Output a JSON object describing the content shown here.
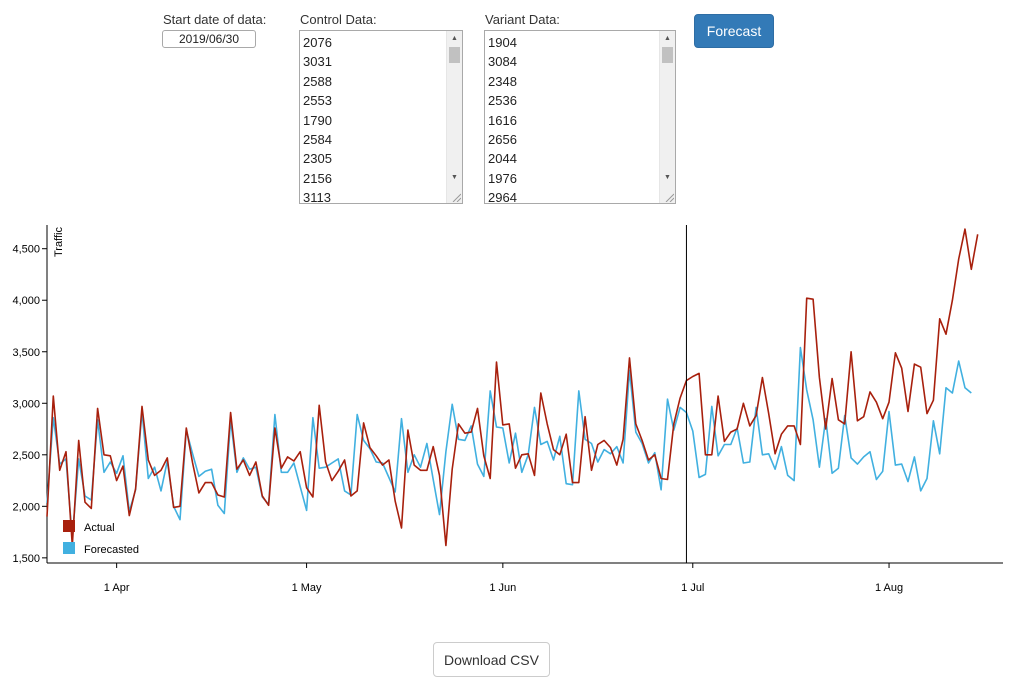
{
  "controls": {
    "start_label": "Start date of data:",
    "start_value": "2019/06/30",
    "control_label": "Control Data:",
    "control_values": [
      "2076",
      "3031",
      "2588",
      "2553",
      "1790",
      "2584",
      "2305",
      "2156",
      "3113"
    ],
    "variant_label": "Variant Data:",
    "variant_values": [
      "1904",
      "3084",
      "2348",
      "2536",
      "1616",
      "2656",
      "2044",
      "1976",
      "2964"
    ],
    "forecast_button": "Forecast",
    "download_button": "Download CSV"
  },
  "icons": {
    "scroll_up": "triangle-up-icon",
    "scroll_down": "triangle-down-icon",
    "resize_grip": "resize-grip-icon"
  },
  "colors": {
    "actual": "#a8200d",
    "forecasted": "#41b0e0",
    "button_primary": "#337ab7"
  },
  "chart_data": {
    "type": "line",
    "x_start": "2019-03-21",
    "x_end": "2019-08-19",
    "ylabel": "Traffic",
    "ylim": [
      1450,
      4730
    ],
    "yticks": [
      1500,
      2000,
      2500,
      3000,
      3500,
      4000,
      4500
    ],
    "ytick_labels": [
      "1,500",
      "2,000",
      "2,500",
      "3,000",
      "3,500",
      "4,000",
      "4,500"
    ],
    "xticks": [
      "2019-04-01",
      "2019-05-01",
      "2019-06-01",
      "2019-07-01",
      "2019-08-01"
    ],
    "xtick_labels": [
      "1 Apr",
      "1 May",
      "1 Jun",
      "1 Jul",
      "1 Aug"
    ],
    "marker_line": "2019-06-30",
    "legend_position": "bottom-left",
    "series": [
      {
        "name": "Actual",
        "color": "#a8200d",
        "values": [
          1900,
          3070,
          2350,
          2530,
          1620,
          2640,
          2040,
          1980,
          2950,
          2500,
          2490,
          2250,
          2390,
          1910,
          2170,
          2970,
          2450,
          2300,
          2350,
          2470,
          1990,
          2000,
          2760,
          2420,
          2130,
          2230,
          2230,
          2110,
          2090,
          2910,
          2360,
          2450,
          2300,
          2430,
          2100,
          2010,
          2760,
          2370,
          2480,
          2440,
          2530,
          2180,
          2090,
          2980,
          2430,
          2250,
          2340,
          2450,
          2100,
          2150,
          2810,
          2570,
          2490,
          2400,
          2450,
          2050,
          1790,
          2740,
          2400,
          2350,
          2350,
          2580,
          2300,
          1620,
          2360,
          2800,
          2710,
          2720,
          2950,
          2490,
          2270,
          3400,
          2790,
          2800,
          2370,
          2500,
          2510,
          2300,
          3100,
          2800,
          2550,
          2500,
          2700,
          2230,
          2230,
          2870,
          2350,
          2600,
          2640,
          2570,
          2400,
          2650,
          3440,
          2800,
          2640,
          2450,
          2500,
          2270,
          2260,
          2800,
          3050,
          3220,
          3260,
          3290,
          2500,
          2500,
          3070,
          2630,
          2720,
          2750,
          3000,
          2780,
          2880,
          3250,
          2900,
          2510,
          2700,
          2780,
          2780,
          2600,
          4020,
          4010,
          3250,
          2750,
          3240,
          2840,
          2800,
          3500,
          2830,
          2870,
          3110,
          3010,
          2850,
          3010,
          3490,
          3340,
          2920,
          3380,
          3350,
          2900,
          3030,
          3820,
          3670,
          4000,
          4400,
          4690,
          4300,
          4640
        ]
      },
      {
        "name": "Forecasted",
        "color": "#41b0e0",
        "values": [
          2030,
          2860,
          2410,
          2460,
          1690,
          2460,
          2100,
          2060,
          2840,
          2330,
          2430,
          2320,
          2490,
          1950,
          2160,
          2920,
          2270,
          2380,
          2150,
          2440,
          2000,
          1870,
          2740,
          2510,
          2290,
          2340,
          2360,
          2010,
          1930,
          2840,
          2330,
          2470,
          2360,
          2380,
          2090,
          2020,
          2890,
          2330,
          2330,
          2420,
          2190,
          1960,
          2860,
          2370,
          2380,
          2420,
          2460,
          2150,
          2110,
          2890,
          2640,
          2560,
          2430,
          2420,
          2280,
          2140,
          2850,
          2330,
          2500,
          2380,
          2610,
          2260,
          1920,
          2530,
          2990,
          2650,
          2640,
          2780,
          2410,
          2290,
          3120,
          2770,
          2760,
          2420,
          2710,
          2330,
          2500,
          2960,
          2600,
          2630,
          2450,
          2680,
          2220,
          2210,
          3120,
          2650,
          2610,
          2430,
          2550,
          2510,
          2580,
          2420,
          3320,
          2720,
          2610,
          2420,
          2520,
          2160,
          3040,
          2740,
          2960,
          2910,
          2730,
          2280,
          2310,
          2970,
          2490,
          2600,
          2600,
          2760,
          2420,
          2430,
          2960,
          2500,
          2510,
          2360,
          2580,
          2300,
          2250,
          3540,
          3130,
          2840,
          2380,
          2850,
          2320,
          2370,
          2880,
          2470,
          2410,
          2480,
          2530,
          2260,
          2340,
          2920,
          2400,
          2410,
          2240,
          2480,
          2150,
          2270,
          2830,
          2510,
          3150,
          3100,
          3410,
          3150,
          3100
        ]
      }
    ]
  }
}
